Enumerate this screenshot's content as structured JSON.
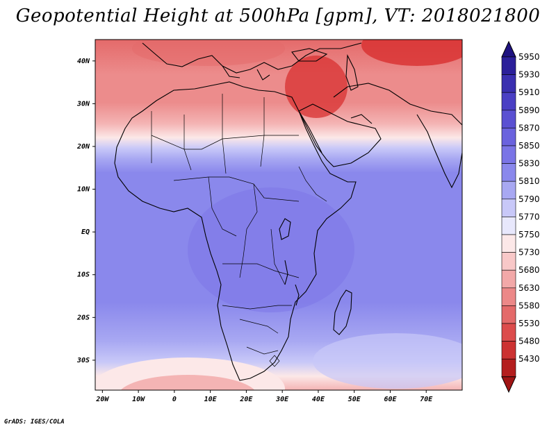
{
  "title": "Geopotential Height at 500hPa [gpm], VT: 2018021800",
  "credit": "GrADS: IGES/COLA",
  "map": {
    "lon_ticks": [
      "20W",
      "10W",
      "0",
      "10E",
      "20E",
      "30E",
      "40E",
      "50E",
      "60E",
      "70E"
    ],
    "lat_ticks": [
      "40N",
      "30N",
      "20N",
      "10N",
      "EQ",
      "10S",
      "20S",
      "30S"
    ],
    "lon_range": [
      -22,
      80
    ],
    "lat_range": [
      -37,
      45
    ]
  },
  "colorbar": {
    "labels": [
      "5950",
      "5930",
      "5910",
      "5890",
      "5870",
      "5850",
      "5830",
      "5810",
      "5790",
      "5770",
      "5750",
      "5730",
      "5680",
      "5630",
      "5580",
      "5530",
      "5480",
      "5430"
    ],
    "colors": [
      "#2b1f9a",
      "#3a2fb0",
      "#4a3fc4",
      "#5a50d2",
      "#6a62de",
      "#7a74e6",
      "#8a88ec",
      "#a8a8f2",
      "#c8c8f8",
      "#e8e8fc",
      "#fce8e8",
      "#f8c8c8",
      "#f2a8a8",
      "#ec8888",
      "#e46a6a",
      "#dc4c4c",
      "#cc3232",
      "#b41e1e"
    ],
    "top_arrow_color": "#1e1280",
    "bottom_arrow_color": "#a01414"
  },
  "field_colors": {
    "deep_red": "#d83030",
    "red": "#e46a6a",
    "light_red": "#ec8c8c",
    "pink": "#f4b4b4",
    "pale": "#fce8e8",
    "lavender": "#c8c8f8",
    "light_blue": "#a8a8f2",
    "blue": "#8a88ec",
    "mid_blue": "#7a74e6"
  }
}
